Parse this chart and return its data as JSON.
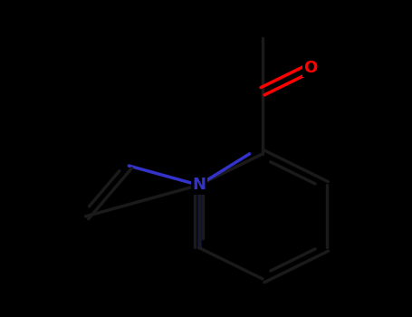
{
  "background_color": "#000000",
  "ring_bond_color": "#1a1a1a",
  "N_color": "#3333cc",
  "O_color": "#ff0000",
  "bond_width": 2.5,
  "font_size_N": 13,
  "font_size_O": 13,
  "figsize": [
    4.55,
    3.5
  ],
  "dpi": 100,
  "mol_scale": 1.0
}
